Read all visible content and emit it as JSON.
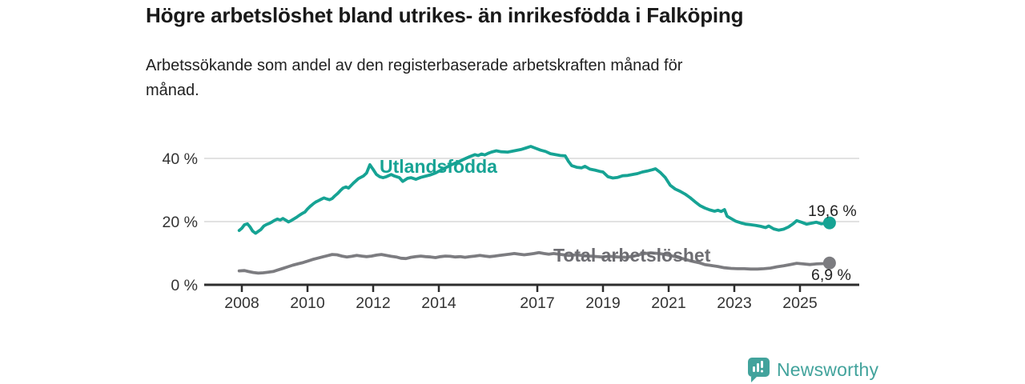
{
  "header": {
    "title": "Högre arbetslöshet bland utrikes- än inrikesfödda i Falköping",
    "subtitle": "Arbetssökande som andel av den registerbaserade arbetskraften månad för månad.",
    "subtitle_lines": [
      "Arbetssökande som andel av den registerbaserade arbetskraften månad för",
      "månad."
    ]
  },
  "footer": {
    "brand": "Newsworthy",
    "brand_color": "#42a39c",
    "logo_icon": "speech-bubble-bar-chart"
  },
  "colors": {
    "series_utlandsfodda": "#16a394",
    "series_total": "#7c7c80",
    "series_total_label": "#6d6d72",
    "axis": "#2d2d2d",
    "grid": "#d8d8d8",
    "text": "#222222"
  },
  "chart_data": {
    "type": "line",
    "title": "Högre arbetslöshet bland utrikes- än inrikesfödda i Falköping",
    "subtitle": "Arbetssökande som andel av den registerbaserade arbetskraften månad för månad.",
    "xlabel": "",
    "ylabel": "",
    "grid": "horizontal",
    "legend_position": "inline-labels",
    "xlim": [
      2006.85,
      2026.8
    ],
    "ylim": [
      0,
      45
    ],
    "x_ticks": [
      2008,
      2010,
      2012,
      2014,
      2017,
      2019,
      2021,
      2023,
      2025
    ],
    "x_tick_labels": [
      "2008",
      "2010",
      "2012",
      "2014",
      "2017",
      "2019",
      "2021",
      "2023",
      "2025"
    ],
    "y_ticks": [
      0,
      20,
      40
    ],
    "y_tick_labels": [
      "0 %",
      "20 %",
      "40 %"
    ],
    "series": [
      {
        "name": "Utlandsfödda",
        "color": "#16a394",
        "end_value": 19.6,
        "end_label": "19,6 %",
        "points": [
          [
            2007.92,
            17.2
          ],
          [
            2008.0,
            17.9
          ],
          [
            2008.08,
            19.0
          ],
          [
            2008.17,
            19.3
          ],
          [
            2008.25,
            18.3
          ],
          [
            2008.33,
            17.0
          ],
          [
            2008.42,
            16.3
          ],
          [
            2008.5,
            16.9
          ],
          [
            2008.58,
            17.5
          ],
          [
            2008.67,
            18.6
          ],
          [
            2008.75,
            19.1
          ],
          [
            2008.83,
            19.4
          ],
          [
            2008.92,
            19.9
          ],
          [
            2009.0,
            20.4
          ],
          [
            2009.08,
            20.8
          ],
          [
            2009.17,
            20.5
          ],
          [
            2009.25,
            21.0
          ],
          [
            2009.33,
            20.5
          ],
          [
            2009.42,
            19.9
          ],
          [
            2009.5,
            20.3
          ],
          [
            2009.58,
            20.8
          ],
          [
            2009.67,
            21.4
          ],
          [
            2009.75,
            22.0
          ],
          [
            2009.83,
            22.5
          ],
          [
            2009.92,
            23.0
          ],
          [
            2010.0,
            24.0
          ],
          [
            2010.08,
            24.8
          ],
          [
            2010.17,
            25.6
          ],
          [
            2010.25,
            26.2
          ],
          [
            2010.33,
            26.6
          ],
          [
            2010.42,
            27.1
          ],
          [
            2010.5,
            27.5
          ],
          [
            2010.58,
            27.2
          ],
          [
            2010.67,
            26.9
          ],
          [
            2010.75,
            27.3
          ],
          [
            2010.83,
            28.1
          ],
          [
            2010.92,
            28.9
          ],
          [
            2011.0,
            29.8
          ],
          [
            2011.08,
            30.6
          ],
          [
            2011.17,
            31.0
          ],
          [
            2011.25,
            30.6
          ],
          [
            2011.4,
            32.2
          ],
          [
            2011.55,
            33.6
          ],
          [
            2011.7,
            34.4
          ],
          [
            2011.8,
            35.4
          ],
          [
            2011.9,
            38.0
          ],
          [
            2012.0,
            36.5
          ],
          [
            2012.1,
            34.9
          ],
          [
            2012.2,
            34.2
          ],
          [
            2012.3,
            33.9
          ],
          [
            2012.4,
            34.2
          ],
          [
            2012.55,
            34.9
          ],
          [
            2012.65,
            34.4
          ],
          [
            2012.8,
            33.9
          ],
          [
            2012.9,
            32.7
          ],
          [
            2013.05,
            33.7
          ],
          [
            2013.15,
            33.9
          ],
          [
            2013.3,
            33.4
          ],
          [
            2013.45,
            34.0
          ],
          [
            2013.6,
            34.4
          ],
          [
            2013.75,
            34.8
          ],
          [
            2013.9,
            35.4
          ],
          [
            2014.05,
            36.2
          ],
          [
            2014.2,
            37.0
          ],
          [
            2014.35,
            37.8
          ],
          [
            2014.5,
            38.5
          ],
          [
            2014.65,
            39.2
          ],
          [
            2014.8,
            39.9
          ],
          [
            2014.95,
            40.6
          ],
          [
            2015.1,
            41.2
          ],
          [
            2015.2,
            40.9
          ],
          [
            2015.3,
            41.4
          ],
          [
            2015.4,
            41.1
          ],
          [
            2015.5,
            41.6
          ],
          [
            2015.6,
            42.0
          ],
          [
            2015.75,
            42.4
          ],
          [
            2015.9,
            42.1
          ],
          [
            2016.1,
            42.0
          ],
          [
            2016.3,
            42.4
          ],
          [
            2016.5,
            42.8
          ],
          [
            2016.65,
            43.3
          ],
          [
            2016.8,
            43.8
          ],
          [
            2016.95,
            43.2
          ],
          [
            2017.1,
            42.6
          ],
          [
            2017.25,
            42.2
          ],
          [
            2017.4,
            41.5
          ],
          [
            2017.55,
            41.2
          ],
          [
            2017.7,
            40.9
          ],
          [
            2017.85,
            40.8
          ],
          [
            2017.95,
            39.0
          ],
          [
            2018.05,
            37.7
          ],
          [
            2018.2,
            37.2
          ],
          [
            2018.35,
            37.0
          ],
          [
            2018.45,
            37.5
          ],
          [
            2018.6,
            36.6
          ],
          [
            2018.75,
            36.3
          ],
          [
            2018.9,
            35.9
          ],
          [
            2019.0,
            35.7
          ],
          [
            2019.15,
            34.2
          ],
          [
            2019.3,
            33.8
          ],
          [
            2019.45,
            34.0
          ],
          [
            2019.6,
            34.5
          ],
          [
            2019.75,
            34.6
          ],
          [
            2019.9,
            34.9
          ],
          [
            2020.05,
            35.2
          ],
          [
            2020.2,
            35.7
          ],
          [
            2020.35,
            36.0
          ],
          [
            2020.5,
            36.4
          ],
          [
            2020.6,
            36.7
          ],
          [
            2020.75,
            35.5
          ],
          [
            2020.9,
            33.9
          ],
          [
            2021.05,
            31.5
          ],
          [
            2021.2,
            30.3
          ],
          [
            2021.35,
            29.6
          ],
          [
            2021.5,
            28.7
          ],
          [
            2021.65,
            27.6
          ],
          [
            2021.8,
            26.3
          ],
          [
            2021.95,
            25.1
          ],
          [
            2022.1,
            24.3
          ],
          [
            2022.25,
            23.7
          ],
          [
            2022.4,
            23.3
          ],
          [
            2022.5,
            23.6
          ],
          [
            2022.6,
            23.2
          ],
          [
            2022.7,
            23.8
          ],
          [
            2022.78,
            21.7
          ],
          [
            2022.9,
            21.0
          ],
          [
            2023.05,
            20.1
          ],
          [
            2023.2,
            19.6
          ],
          [
            2023.35,
            19.2
          ],
          [
            2023.5,
            19.0
          ],
          [
            2023.65,
            18.8
          ],
          [
            2023.8,
            18.5
          ],
          [
            2023.95,
            18.1
          ],
          [
            2024.05,
            18.6
          ],
          [
            2024.2,
            17.7
          ],
          [
            2024.35,
            17.3
          ],
          [
            2024.5,
            17.6
          ],
          [
            2024.65,
            18.3
          ],
          [
            2024.8,
            19.4
          ],
          [
            2024.9,
            20.3
          ],
          [
            2025.05,
            19.8
          ],
          [
            2025.2,
            19.2
          ],
          [
            2025.35,
            19.5
          ],
          [
            2025.5,
            19.8
          ],
          [
            2025.65,
            19.3
          ],
          [
            2025.9,
            19.6
          ]
        ]
      },
      {
        "name": "Total arbetslöshet",
        "color": "#7c7c80",
        "end_value": 6.9,
        "end_label": "6,9 %",
        "points": [
          [
            2007.92,
            4.4
          ],
          [
            2008.08,
            4.5
          ],
          [
            2008.2,
            4.2
          ],
          [
            2008.35,
            3.9
          ],
          [
            2008.5,
            3.7
          ],
          [
            2008.65,
            3.8
          ],
          [
            2008.8,
            4.0
          ],
          [
            2008.95,
            4.2
          ],
          [
            2009.1,
            4.7
          ],
          [
            2009.25,
            5.2
          ],
          [
            2009.4,
            5.7
          ],
          [
            2009.55,
            6.2
          ],
          [
            2009.7,
            6.6
          ],
          [
            2009.85,
            7.0
          ],
          [
            2010.0,
            7.5
          ],
          [
            2010.15,
            8.0
          ],
          [
            2010.3,
            8.4
          ],
          [
            2010.45,
            8.8
          ],
          [
            2010.6,
            9.2
          ],
          [
            2010.75,
            9.6
          ],
          [
            2010.9,
            9.5
          ],
          [
            2011.05,
            9.1
          ],
          [
            2011.2,
            8.8
          ],
          [
            2011.35,
            9.0
          ],
          [
            2011.5,
            9.3
          ],
          [
            2011.65,
            9.1
          ],
          [
            2011.8,
            8.9
          ],
          [
            2011.95,
            9.1
          ],
          [
            2012.1,
            9.4
          ],
          [
            2012.25,
            9.6
          ],
          [
            2012.4,
            9.3
          ],
          [
            2012.55,
            9.0
          ],
          [
            2012.7,
            8.8
          ],
          [
            2012.85,
            8.4
          ],
          [
            2013.0,
            8.3
          ],
          [
            2013.15,
            8.7
          ],
          [
            2013.3,
            8.9
          ],
          [
            2013.45,
            9.1
          ],
          [
            2013.6,
            8.9
          ],
          [
            2013.75,
            8.8
          ],
          [
            2013.9,
            8.6
          ],
          [
            2014.05,
            8.9
          ],
          [
            2014.2,
            9.1
          ],
          [
            2014.35,
            9.0
          ],
          [
            2014.5,
            8.8
          ],
          [
            2014.65,
            8.9
          ],
          [
            2014.8,
            8.7
          ],
          [
            2014.95,
            8.9
          ],
          [
            2015.1,
            9.1
          ],
          [
            2015.25,
            9.3
          ],
          [
            2015.4,
            9.1
          ],
          [
            2015.55,
            8.9
          ],
          [
            2015.7,
            9.1
          ],
          [
            2015.85,
            9.3
          ],
          [
            2016.0,
            9.5
          ],
          [
            2016.15,
            9.7
          ],
          [
            2016.3,
            9.9
          ],
          [
            2016.45,
            9.7
          ],
          [
            2016.6,
            9.5
          ],
          [
            2016.75,
            9.7
          ],
          [
            2016.9,
            9.9
          ],
          [
            2017.05,
            10.2
          ],
          [
            2017.2,
            9.9
          ],
          [
            2017.35,
            9.7
          ],
          [
            2017.5,
            9.9
          ],
          [
            2017.65,
            9.7
          ],
          [
            2017.8,
            9.5
          ],
          [
            2017.95,
            9.3
          ],
          [
            2018.2,
            9.5
          ],
          [
            2018.45,
            9.2
          ],
          [
            2018.7,
            9.0
          ],
          [
            2018.95,
            8.8
          ],
          [
            2019.2,
            9.0
          ],
          [
            2019.45,
            8.8
          ],
          [
            2019.7,
            8.7
          ],
          [
            2019.95,
            9.1
          ],
          [
            2020.2,
            9.8
          ],
          [
            2020.45,
            10.1
          ],
          [
            2020.7,
            9.9
          ],
          [
            2020.95,
            9.5
          ],
          [
            2021.2,
            8.9
          ],
          [
            2021.45,
            8.2
          ],
          [
            2021.7,
            7.5
          ],
          [
            2021.95,
            6.9
          ],
          [
            2022.1,
            6.4
          ],
          [
            2022.3,
            6.1
          ],
          [
            2022.5,
            5.8
          ],
          [
            2022.7,
            5.4
          ],
          [
            2022.9,
            5.2
          ],
          [
            2023.1,
            5.1
          ],
          [
            2023.3,
            5.1
          ],
          [
            2023.5,
            5.0
          ],
          [
            2023.7,
            5.0
          ],
          [
            2023.9,
            5.1
          ],
          [
            2024.1,
            5.3
          ],
          [
            2024.3,
            5.7
          ],
          [
            2024.5,
            6.0
          ],
          [
            2024.7,
            6.4
          ],
          [
            2024.9,
            6.8
          ],
          [
            2025.1,
            6.6
          ],
          [
            2025.3,
            6.4
          ],
          [
            2025.5,
            6.6
          ],
          [
            2025.7,
            6.7
          ],
          [
            2025.9,
            6.9
          ]
        ]
      }
    ]
  }
}
